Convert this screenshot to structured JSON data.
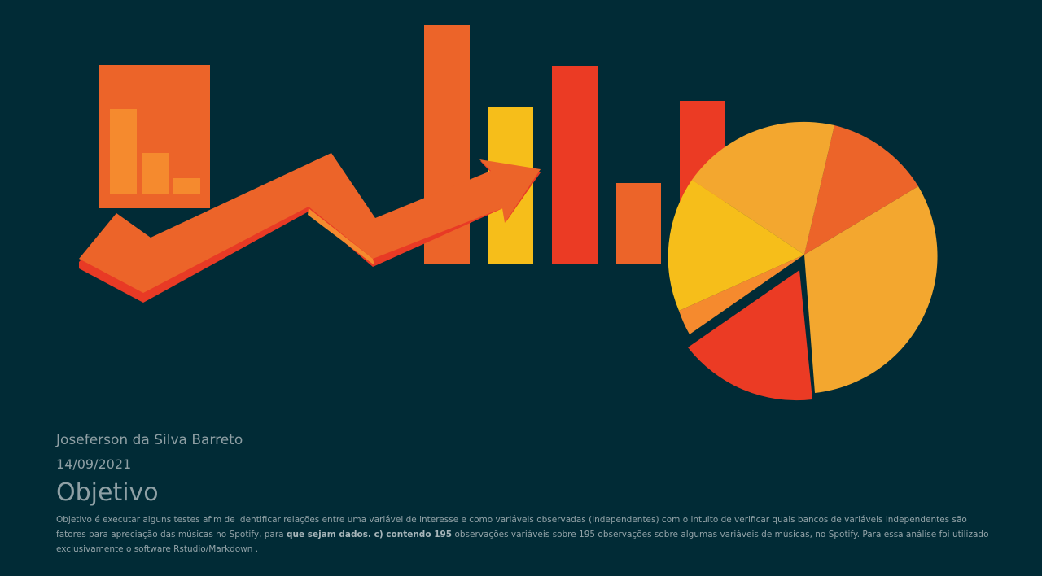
{
  "illustration": {
    "colors": {
      "background": "#012b36",
      "orange": "#ec6429",
      "light_orange": "#f58a2e",
      "red": "#eb3b24",
      "yellow": "#f6be1a",
      "amber": "#f3a72f",
      "shadow_red": "#e83a25"
    },
    "icons": [
      "bar-chart-card-icon",
      "trend-arrow-icon",
      "pie-chart-icon"
    ]
  },
  "document": {
    "author": "Joseferson da Silva Barreto",
    "date": "14/09/2021",
    "section_title": "Objetivo",
    "paragraph": {
      "part1": "Objetivo é executar alguns testes afim de identificar relações entre uma variável de interesse e como variáveis observadas (independentes) com o intuito de verificar quais bancos de variáveis independentes são fatores para apreciação das músicas no Spotify, para ",
      "bold1": "que sejam dados. c) contendo 195",
      "part2": " observações variáveis sobre 195 observações sobre algumas variáveis de músicas, no Spotify. Para essa análise foi utilizado exclusivamente o software Rstudio/Markdown ."
    }
  }
}
